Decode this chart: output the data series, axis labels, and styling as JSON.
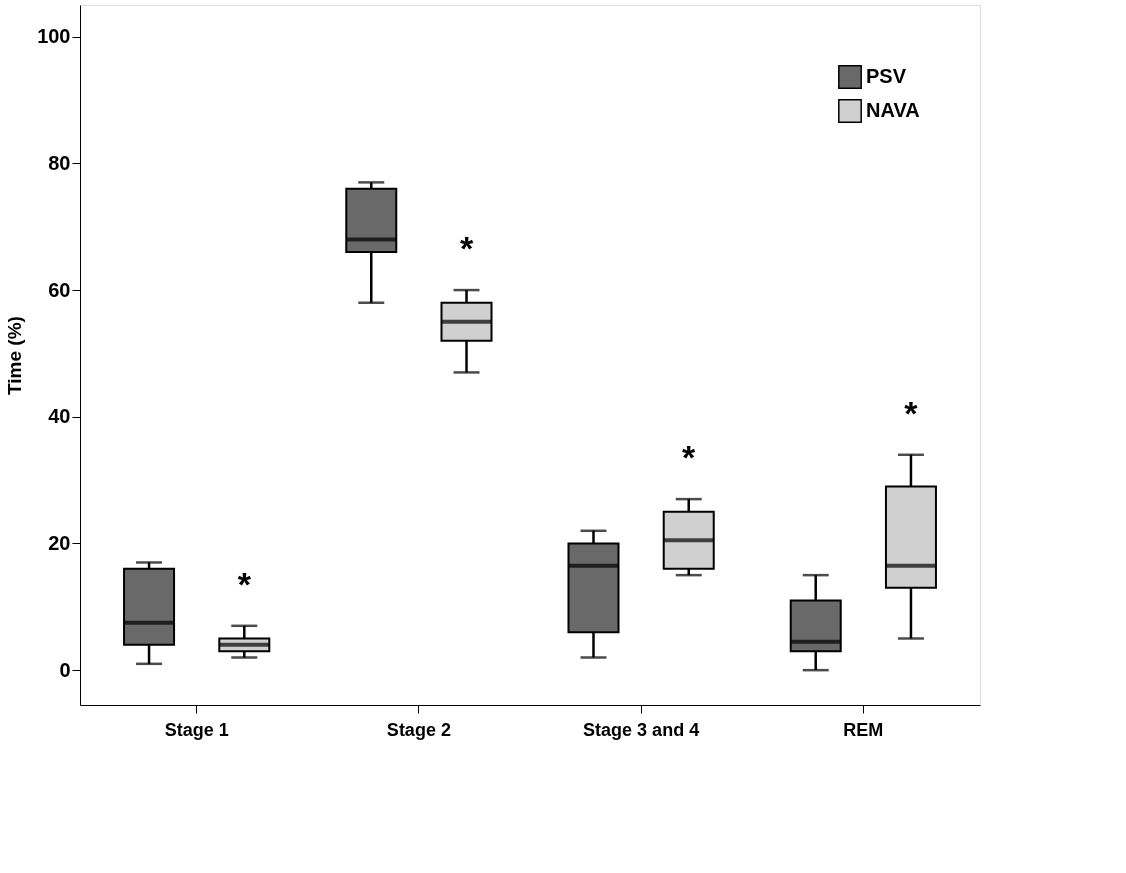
{
  "chart_data": {
    "type": "box",
    "ylabel": "Time (%)",
    "categories": [
      "Stage 1",
      "Stage 2",
      "Stage 3 and 4",
      "REM"
    ],
    "ylim": [
      -5.5,
      105
    ],
    "yticks": [
      0,
      20,
      40,
      60,
      80,
      100
    ],
    "grid": false,
    "legend": "top right",
    "series": [
      {
        "name": "PSV",
        "color": "#696969",
        "boxes": [
          {
            "low": 1,
            "q1": 4,
            "median": 7.5,
            "q3": 16,
            "high": 17
          },
          {
            "low": 58,
            "q1": 66,
            "median": 68,
            "q3": 76,
            "high": 77
          },
          {
            "low": 2,
            "q1": 6,
            "median": 16.5,
            "q3": 20,
            "high": 22
          },
          {
            "low": 0,
            "q1": 3,
            "median": 4.5,
            "q3": 11,
            "high": 15
          }
        ]
      },
      {
        "name": "NAVA",
        "color": "#d0d0d0",
        "boxes": [
          {
            "low": 2,
            "q1": 3,
            "median": 4,
            "q3": 5,
            "high": 7
          },
          {
            "low": 47,
            "q1": 52,
            "median": 55,
            "q3": 58,
            "high": 60
          },
          {
            "low": 15,
            "q1": 16,
            "median": 20.5,
            "q3": 25,
            "high": 27
          },
          {
            "low": 5,
            "q1": 13,
            "median": 16.5,
            "q3": 29,
            "high": 34
          }
        ]
      }
    ],
    "annotations": [
      "*",
      "*",
      "*",
      "*"
    ]
  }
}
